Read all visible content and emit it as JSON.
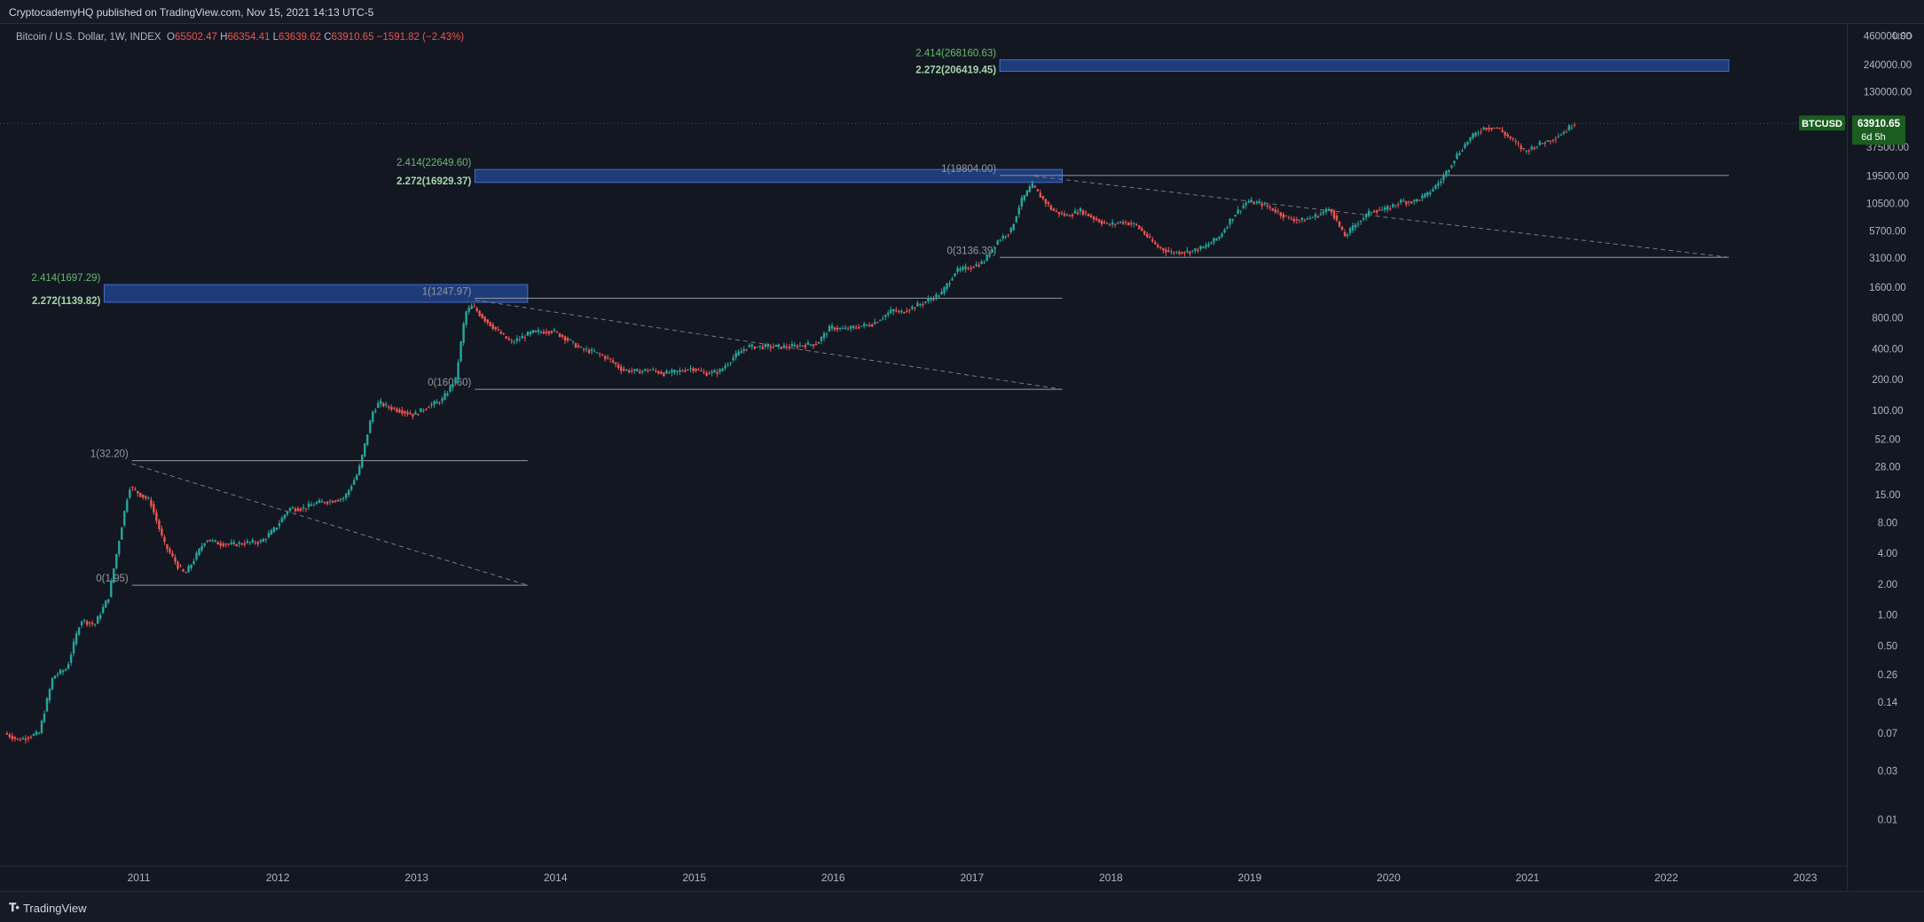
{
  "header": {
    "published": "CryptocademyHQ published on TradingView.com, Nov 15, 2021 14:13 UTC-5"
  },
  "legend": {
    "symbol": "Bitcoin / U.S. Dollar, 1W, INDEX",
    "o_label": "O",
    "o": "65502.47",
    "h_label": "H",
    "h": "66354.41",
    "l_label": "L",
    "l": "63639.62",
    "c_label": "C",
    "c": "63910.65",
    "change": "−1591.82 (−2.43%)"
  },
  "price_tag": {
    "symbol": "BTCUSD",
    "price": "63910.65",
    "countdown": "6d 5h",
    "color": "#1b5e20"
  },
  "footer": {
    "brand": "TradingView"
  },
  "colors": {
    "up": "#26a69a",
    "down": "#ef5350",
    "zone_fill": "#1e3c78",
    "zone_stroke": "#3f6fd1",
    "fib_green": "#66bb6a",
    "grid": "#2a2e39"
  },
  "chart_data": {
    "type": "candlestick",
    "y_scale": "log",
    "y_unit": "USD",
    "y_ticks": [
      "460000.00",
      "240000.00",
      "130000.00",
      "37500.00",
      "19500.00",
      "10500.00",
      "5700.00",
      "3100.00",
      "1600.00",
      "800.00",
      "400.00",
      "200.00",
      "100.00",
      "52.00",
      "28.00",
      "15.00",
      "8.00",
      "4.00",
      "2.00",
      "1.00",
      "0.50",
      "0.26",
      "0.14",
      "0.07",
      "0.03",
      "0.01"
    ],
    "x_ticks": [
      "2011",
      "2012",
      "2013",
      "2014",
      "2015",
      "2016",
      "2017",
      "2018",
      "2019",
      "2020",
      "2021",
      "2022",
      "2023"
    ],
    "x_range": [
      2010.5,
      2023.8
    ],
    "y_range": [
      0.0035,
      600000
    ],
    "price_path": [
      [
        2010.55,
        0.07
      ],
      [
        2010.65,
        0.06
      ],
      [
        2010.8,
        0.07
      ],
      [
        2010.9,
        0.25
      ],
      [
        2011.0,
        0.3
      ],
      [
        2011.1,
        0.9
      ],
      [
        2011.2,
        0.8
      ],
      [
        2011.3,
        1.5
      ],
      [
        2011.4,
        8
      ],
      [
        2011.45,
        18
      ],
      [
        2011.5,
        16
      ],
      [
        2011.6,
        13
      ],
      [
        2011.7,
        5
      ],
      [
        2011.8,
        3
      ],
      [
        2011.85,
        2.5
      ],
      [
        2011.9,
        3.2
      ],
      [
        2012.0,
        5.5
      ],
      [
        2012.1,
        5
      ],
      [
        2012.2,
        4.9
      ],
      [
        2012.3,
        5.1
      ],
      [
        2012.4,
        5.2
      ],
      [
        2012.5,
        7
      ],
      [
        2012.6,
        11
      ],
      [
        2012.7,
        11
      ],
      [
        2012.8,
        12.5
      ],
      [
        2012.9,
        13
      ],
      [
        2013.0,
        14
      ],
      [
        2013.1,
        25
      ],
      [
        2013.2,
        95
      ],
      [
        2013.25,
        120
      ],
      [
        2013.3,
        110
      ],
      [
        2013.4,
        100
      ],
      [
        2013.5,
        90
      ],
      [
        2013.6,
        110
      ],
      [
        2013.7,
        125
      ],
      [
        2013.8,
        200
      ],
      [
        2013.87,
        900
      ],
      [
        2013.92,
        1050
      ],
      [
        2014.0,
        800
      ],
      [
        2014.1,
        600
      ],
      [
        2014.2,
        460
      ],
      [
        2014.35,
        580
      ],
      [
        2014.5,
        600
      ],
      [
        2014.6,
        500
      ],
      [
        2014.7,
        400
      ],
      [
        2014.8,
        370
      ],
      [
        2014.9,
        320
      ],
      [
        2015.0,
        250
      ],
      [
        2015.1,
        240
      ],
      [
        2015.2,
        250
      ],
      [
        2015.3,
        230
      ],
      [
        2015.4,
        240
      ],
      [
        2015.5,
        260
      ],
      [
        2015.6,
        230
      ],
      [
        2015.7,
        240
      ],
      [
        2015.8,
        330
      ],
      [
        2015.9,
        420
      ],
      [
        2016.0,
        420
      ],
      [
        2016.2,
        420
      ],
      [
        2016.4,
        450
      ],
      [
        2016.5,
        650
      ],
      [
        2016.6,
        620
      ],
      [
        2016.8,
        700
      ],
      [
        2016.95,
        960
      ],
      [
        2017.0,
        900
      ],
      [
        2017.15,
        1100
      ],
      [
        2017.3,
        1400
      ],
      [
        2017.4,
        2300
      ],
      [
        2017.5,
        2500
      ],
      [
        2017.6,
        2800
      ],
      [
        2017.7,
        4500
      ],
      [
        2017.8,
        5800
      ],
      [
        2017.87,
        11000
      ],
      [
        2017.95,
        16000
      ],
      [
        2018.0,
        13000
      ],
      [
        2018.1,
        9000
      ],
      [
        2018.2,
        8000
      ],
      [
        2018.3,
        9000
      ],
      [
        2018.4,
        7500
      ],
      [
        2018.5,
        6500
      ],
      [
        2018.6,
        7000
      ],
      [
        2018.7,
        6500
      ],
      [
        2018.85,
        4000
      ],
      [
        2018.95,
        3500
      ],
      [
        2019.1,
        3600
      ],
      [
        2019.2,
        4000
      ],
      [
        2019.3,
        5000
      ],
      [
        2019.4,
        8000
      ],
      [
        2019.5,
        11000
      ],
      [
        2019.6,
        10500
      ],
      [
        2019.7,
        9000
      ],
      [
        2019.8,
        7500
      ],
      [
        2019.9,
        7200
      ],
      [
        2020.0,
        8000
      ],
      [
        2020.1,
        9500
      ],
      [
        2020.2,
        5000
      ],
      [
        2020.3,
        7000
      ],
      [
        2020.4,
        9000
      ],
      [
        2020.5,
        9200
      ],
      [
        2020.6,
        11000
      ],
      [
        2020.7,
        11000
      ],
      [
        2020.8,
        13000
      ],
      [
        2020.9,
        18000
      ],
      [
        2021.0,
        30000
      ],
      [
        2021.1,
        45000
      ],
      [
        2021.2,
        58000
      ],
      [
        2021.3,
        58000
      ],
      [
        2021.4,
        45000
      ],
      [
        2021.5,
        34000
      ],
      [
        2021.6,
        40000
      ],
      [
        2021.7,
        45000
      ],
      [
        2021.8,
        55000
      ],
      [
        2021.85,
        63910.65
      ]
    ],
    "ranges": [
      {
        "label_top": "1(32.20)",
        "top": 32.2,
        "label_bottom": "0(1.95)",
        "bottom": 1.95,
        "x0": 2011.45,
        "x1": 2014.3
      },
      {
        "label_top": "1(1247.97)",
        "top": 1247.97,
        "label_bottom": "0(160.60)",
        "bottom": 160.6,
        "x0": 2013.92,
        "x1": 2018.15
      },
      {
        "label_top": "1(19804.00)",
        "top": 19804.0,
        "label_bottom": "0(3136.39)",
        "bottom": 3136.39,
        "x0": 2017.7,
        "x1": 2022.95
      }
    ],
    "targets": [
      {
        "label_hi": "2.414(1697.29)",
        "hi": 1697.29,
        "label_lo": "2.272(1139.82)",
        "lo": 1139.82,
        "x0": 2011.25,
        "x1": 2014.3
      },
      {
        "label_hi": "2.414(22649.60)",
        "hi": 22649.6,
        "label_lo": "2.272(16929.37)",
        "lo": 16929.37,
        "x0": 2013.92,
        "x1": 2018.15
      },
      {
        "label_hi": "2.414(268160.63)",
        "hi": 268160.63,
        "label_lo": "2.272(206419.45)",
        "lo": 206419.45,
        "x0": 2017.7,
        "x1": 2022.95
      }
    ],
    "trendlines": [
      {
        "from": [
          2011.45,
          30
        ],
        "to": [
          2014.3,
          1.95
        ]
      },
      {
        "from": [
          2013.92,
          1200
        ],
        "to": [
          2018.15,
          160.6
        ]
      },
      {
        "from": [
          2017.95,
          19500
        ],
        "to": [
          2022.95,
          3136.39
        ]
      }
    ],
    "last_price": 63910.65
  }
}
